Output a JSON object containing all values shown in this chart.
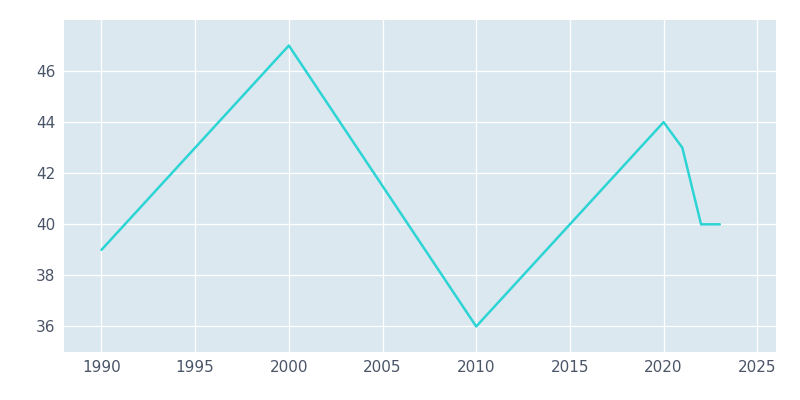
{
  "years": [
    1990,
    2000,
    2010,
    2020,
    2021,
    2022,
    2023
  ],
  "population": [
    39,
    47,
    36,
    44,
    43,
    40,
    40
  ],
  "line_color": "#2dd4d4",
  "bg_color": "#dce8f0",
  "fig_bg_color": "#ffffff",
  "grid_color": "#ffffff",
  "xlim": [
    1988,
    2026
  ],
  "ylim": [
    35,
    48
  ],
  "yticks": [
    36,
    38,
    40,
    42,
    44,
    46
  ],
  "xticks": [
    1990,
    1995,
    2000,
    2005,
    2010,
    2015,
    2020,
    2025
  ],
  "tick_color": "#4a5568",
  "tick_fontsize": 11
}
